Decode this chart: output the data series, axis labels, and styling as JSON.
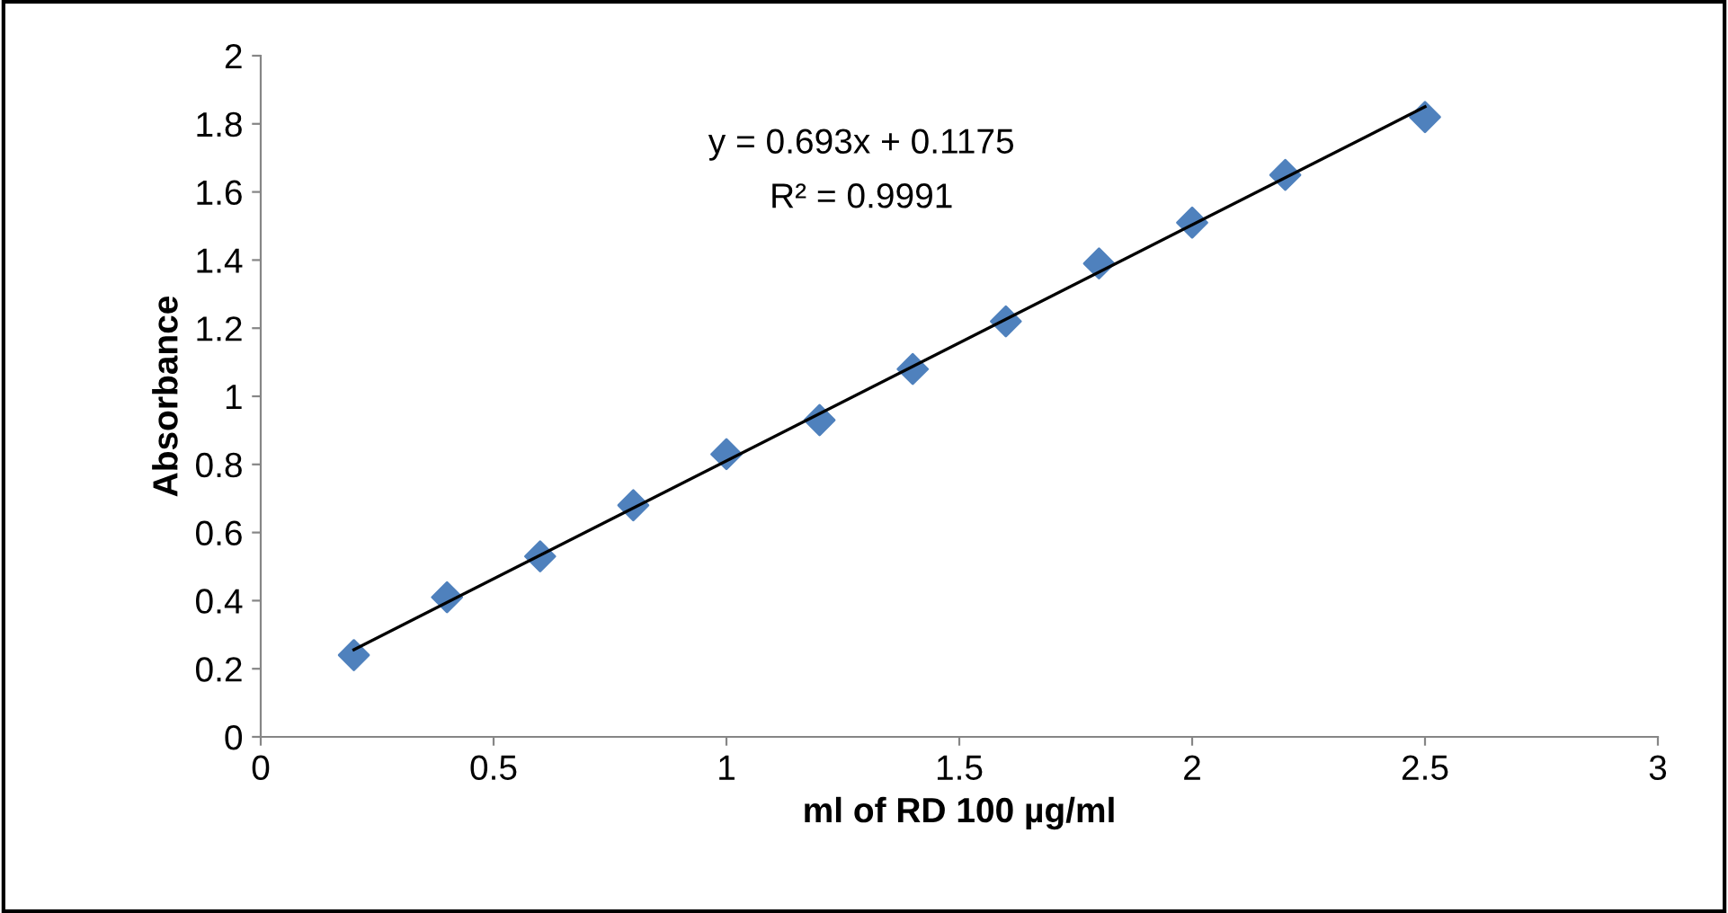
{
  "chart_data": {
    "type": "scatter",
    "xlabel": "ml of RD 100 µg/ml",
    "ylabel": "Absorbance",
    "x": [
      0.2,
      0.4,
      0.6,
      0.8,
      1,
      1.2,
      1.4,
      1.6,
      1.8,
      2,
      2.2,
      2.5
    ],
    "series": [
      {
        "color": "#4f81bd",
        "marker": "diamond",
        "values": [
          0.24,
          0.41,
          0.53,
          0.68,
          0.83,
          0.93,
          1.08,
          1.22,
          1.39,
          1.51,
          1.65,
          1.82
        ]
      },
      {
        "type": "line",
        "color": "#000000",
        "marker": "none",
        "line_style": "solid",
        "x": [
          0.2,
          2.5
        ],
        "values": [
          0.256,
          1.85
        ]
      }
    ],
    "xlim": [
      0,
      3
    ],
    "xticks": [
      0,
      0.5,
      1,
      1.5,
      2,
      2.5,
      3
    ],
    "ylim": [
      0,
      2
    ],
    "yticks": [
      0,
      0.2,
      0.4,
      0.6,
      0.8,
      1,
      1.2,
      1.4,
      1.6,
      1.8,
      2
    ],
    "annotations": [
      "y = 0.693x + 0.1175",
      "R² = 0.9991"
    ],
    "grid": false,
    "legend": false
  }
}
